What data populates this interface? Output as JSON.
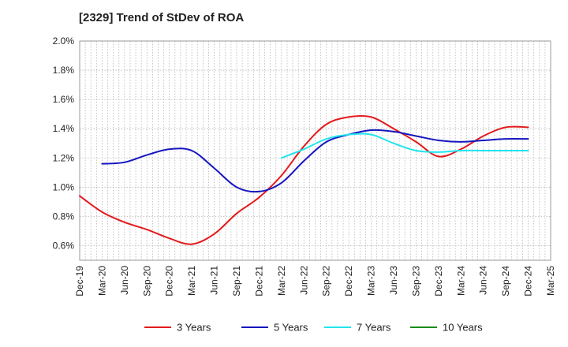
{
  "chart_data": {
    "type": "line",
    "title": "[2329]  Trend of StDev of ROA",
    "xlabel": "",
    "ylabel": "",
    "x": [
      "Dec-19",
      "Mar-20",
      "Jun-20",
      "Sep-20",
      "Dec-20",
      "Mar-21",
      "Jun-21",
      "Sep-21",
      "Dec-21",
      "Mar-22",
      "Jun-22",
      "Sep-22",
      "Dec-22",
      "Mar-23",
      "Jun-23",
      "Sep-23",
      "Dec-23",
      "Mar-24",
      "Jun-24",
      "Sep-24",
      "Dec-24",
      "Mar-25"
    ],
    "ylim": [
      0.5,
      2.0
    ],
    "yticks": [
      "2.0%",
      "1.8%",
      "1.6%",
      "1.4%",
      "1.2%",
      "1.0%",
      "0.8%",
      "0.6%"
    ],
    "ytick_values": [
      2.0,
      1.8,
      1.6,
      1.4,
      1.2,
      1.0,
      0.8,
      0.6
    ],
    "grid": true,
    "legend_position": "bottom",
    "series": [
      {
        "name": "3 Years",
        "color": "#e31a1c",
        "values": [
          0.94,
          0.83,
          0.76,
          0.71,
          0.65,
          0.61,
          0.68,
          0.82,
          0.93,
          1.08,
          1.28,
          1.43,
          1.48,
          1.48,
          1.4,
          1.31,
          1.21,
          1.26,
          1.35,
          1.41,
          1.41,
          null
        ]
      },
      {
        "name": "5 Years",
        "color": "#1515c0",
        "values": [
          null,
          1.16,
          1.17,
          1.22,
          1.26,
          1.25,
          1.13,
          1.0,
          0.97,
          1.03,
          1.18,
          1.31,
          1.36,
          1.39,
          1.38,
          1.35,
          1.32,
          1.31,
          1.32,
          1.33,
          1.33,
          null
        ]
      },
      {
        "name": "7 Years",
        "color": "#22e5ee",
        "values": [
          null,
          null,
          null,
          null,
          null,
          null,
          null,
          null,
          null,
          1.2,
          1.26,
          1.33,
          1.36,
          1.36,
          1.3,
          1.25,
          1.24,
          1.25,
          1.25,
          1.25,
          1.25,
          null
        ]
      },
      {
        "name": "10 Years",
        "color": "#1a8a1a",
        "values": [
          null,
          null,
          null,
          null,
          null,
          null,
          null,
          null,
          null,
          null,
          null,
          null,
          null,
          null,
          null,
          null,
          null,
          null,
          null,
          null,
          null,
          null
        ]
      }
    ]
  }
}
